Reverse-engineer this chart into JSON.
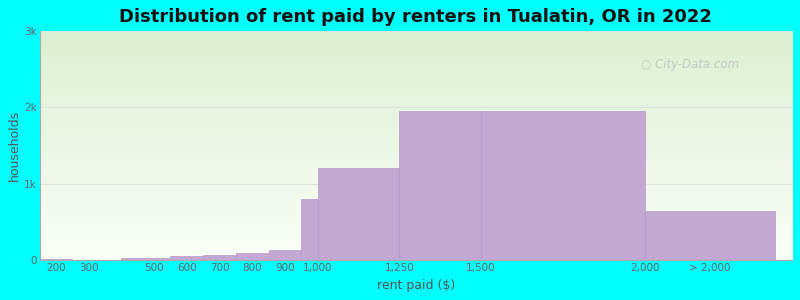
{
  "title": "Distribution of rent paid by renters in Tualatin, OR in 2022",
  "xlabel": "rent paid ($)",
  "ylabel": "households",
  "background_color": "#00FFFF",
  "bar_color": "#c4a8d4",
  "bar_edge_color": "#b898c8",
  "categories": [
    "200",
    "300",
    "500",
    "600",
    "700",
    "800",
    "900",
    "1,000",
    "1,250",
    "1,500",
    "2,000",
    "> 2,000"
  ],
  "bar_lefts": [
    150,
    250,
    400,
    550,
    650,
    750,
    850,
    950,
    1000,
    1250,
    1500,
    2000
  ],
  "bar_rights": [
    250,
    400,
    550,
    650,
    750,
    850,
    950,
    1000,
    1250,
    1500,
    2000,
    2400
  ],
  "values": [
    20,
    10,
    30,
    55,
    75,
    95,
    140,
    800,
    1200,
    1950,
    1950,
    640
  ],
  "ylim": [
    0,
    3000
  ],
  "yticks": [
    0,
    1000,
    2000,
    3000
  ],
  "ytick_labels": [
    "0",
    "1k",
    "2k",
    "3k"
  ],
  "xtick_positions": [
    200,
    300,
    500,
    600,
    700,
    800,
    900,
    1000,
    1250,
    1500,
    2000,
    2200
  ],
  "xtick_labels": [
    "200",
    "300",
    "500",
    "600",
    "700",
    "800",
    "900",
    "1,000",
    "1,250",
    "1,500",
    "2,000",
    "> 2,000"
  ],
  "xlim": [
    150,
    2450
  ],
  "title_fontsize": 13,
  "axis_label_fontsize": 9,
  "tick_fontsize": 7.5,
  "watermark_text": "City-Data.com"
}
